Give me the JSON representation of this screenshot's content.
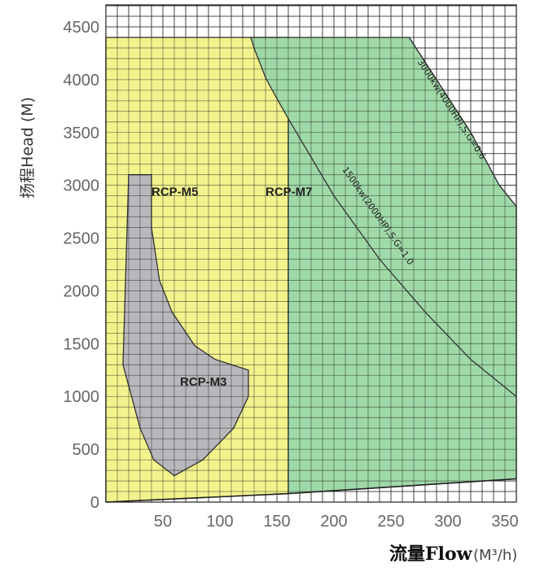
{
  "chart_data": {
    "type": "area",
    "title": "",
    "xlabel": "流量Flow",
    "xlabel_unit": "(M³/h)",
    "ylabel": "扬程Head (M)",
    "xlim": [
      0,
      360
    ],
    "ylim": [
      0,
      4500
    ],
    "x_ticks": [
      "50",
      "100",
      "150",
      "200",
      "250",
      "300",
      "350"
    ],
    "y_ticks": [
      "0",
      "500",
      "1000",
      "1500",
      "2000",
      "2500",
      "3000",
      "3500",
      "4000",
      "4500"
    ],
    "grid": true,
    "regions": [
      {
        "name": "RCP-M5",
        "color": "#f3f38e",
        "label_at": [
          40,
          2900
        ],
        "points": [
          [
            0,
            0
          ],
          [
            0,
            4400
          ],
          [
            160,
            4400
          ],
          [
            160,
            80
          ]
        ]
      },
      {
        "name": "RCP-M7",
        "color": "#9fd9a7",
        "label_at": [
          140,
          2900
        ],
        "points": [
          [
            160,
            80
          ],
          [
            160,
            3630
          ],
          [
            150,
            3820
          ],
          [
            140,
            4020
          ],
          [
            130,
            4300
          ],
          [
            127,
            4400
          ],
          [
            266,
            4400
          ],
          [
            290,
            4000
          ],
          [
            320,
            3500
          ],
          [
            345,
            3000
          ],
          [
            360,
            2800
          ],
          [
            360,
            220
          ]
        ]
      },
      {
        "name": "RCP-M3",
        "color": "#b8b8bc",
        "label_at": [
          65,
          1100
        ],
        "points": [
          [
            20,
            3100
          ],
          [
            40,
            3100
          ],
          [
            40,
            2600
          ],
          [
            47,
            2100
          ],
          [
            58,
            1800
          ],
          [
            78,
            1480
          ],
          [
            96,
            1350
          ],
          [
            125,
            1250
          ],
          [
            125,
            1000
          ],
          [
            112,
            700
          ],
          [
            85,
            400
          ],
          [
            60,
            250
          ],
          [
            42,
            400
          ],
          [
            30,
            700
          ],
          [
            15,
            1300
          ],
          [
            20,
            3100
          ]
        ]
      }
    ],
    "curves": [
      {
        "label": "3000kw(4000HP),S.G=0.6",
        "points": [
          [
            266,
            4400
          ],
          [
            290,
            4000
          ],
          [
            320,
            3500
          ],
          [
            345,
            3000
          ],
          [
            360,
            2800
          ]
        ]
      },
      {
        "label": "1500kw(2000HP),S.G=1.0",
        "points": [
          [
            160,
            3630
          ],
          [
            200,
            2900
          ],
          [
            240,
            2300
          ],
          [
            280,
            1800
          ],
          [
            320,
            1350
          ],
          [
            360,
            1000
          ]
        ]
      }
    ],
    "baseline": {
      "points": [
        [
          0,
          0
        ],
        [
          160,
          80
        ],
        [
          360,
          220
        ]
      ]
    }
  }
}
